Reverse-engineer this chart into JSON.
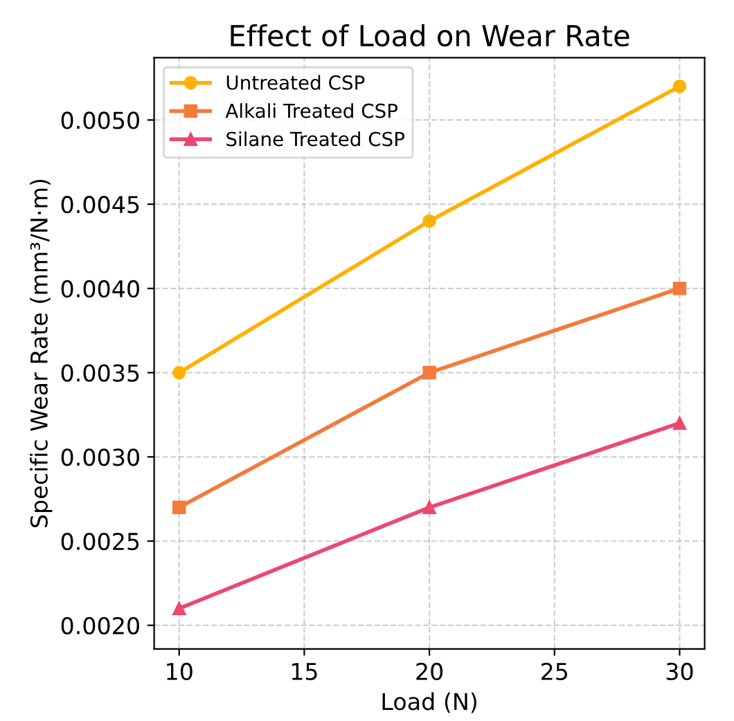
{
  "chart_data": {
    "type": "line",
    "title": "Effect of Load on Wear Rate",
    "xlabel": "Load (N)",
    "ylabel": "Specific Wear Rate (mm³/N·m)",
    "x": [
      10,
      20,
      30
    ],
    "series": [
      {
        "name": "Untreated CSP",
        "color": "#ffb000",
        "marker": "circle",
        "values": [
          0.0035,
          0.0044,
          0.0052
        ]
      },
      {
        "name": "Alkali Treated CSP",
        "color": "#f47a3a",
        "marker": "square",
        "values": [
          0.0027,
          0.0035,
          0.004
        ]
      },
      {
        "name": "Silane Treated CSP",
        "color": "#ef4670",
        "marker": "triangle",
        "values": [
          0.0021,
          0.0027,
          0.0032
        ]
      }
    ],
    "xlim": [
      9,
      31
    ],
    "xticks": [
      10,
      15,
      20,
      25,
      30
    ],
    "ylim": [
      0.00186,
      0.00537
    ],
    "yticks": [
      {
        "value": 0.002,
        "label": "0.0020"
      },
      {
        "value": 0.0025,
        "label": "0.0025"
      },
      {
        "value": 0.003,
        "label": "0.0030"
      },
      {
        "value": 0.0035,
        "label": "0.0035"
      },
      {
        "value": 0.004,
        "label": "0.0040"
      },
      {
        "value": 0.0045,
        "label": "0.0045"
      },
      {
        "value": 0.005,
        "label": "0.0050"
      }
    ],
    "grid": true,
    "legend": "top left",
    "line_style": "solid"
  }
}
